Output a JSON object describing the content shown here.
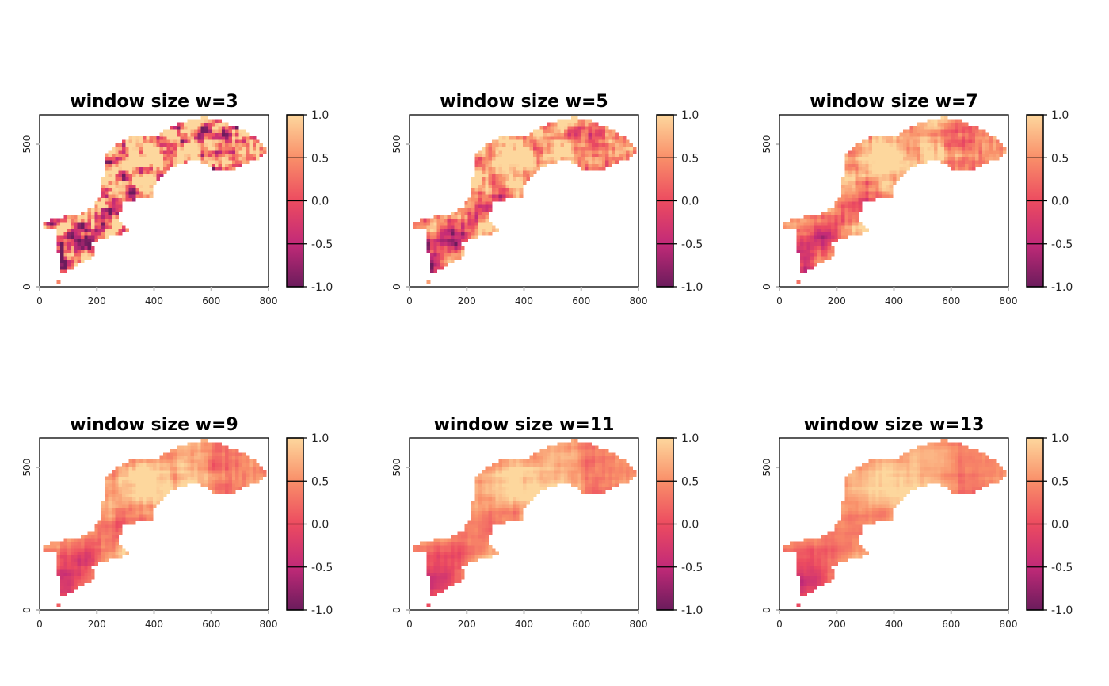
{
  "chart_data": {
    "type": "heatmap",
    "layout": "2x3 grid of raster maps",
    "panels": [
      {
        "title": "window size w=3",
        "w": 3
      },
      {
        "title": "window size w=5",
        "w": 5
      },
      {
        "title": "window size w=7",
        "w": 7
      },
      {
        "title": "window size w=9",
        "w": 9
      },
      {
        "title": "window size w=11",
        "w": 11
      },
      {
        "title": "window size w=13",
        "w": 13
      }
    ],
    "xlim": [
      0,
      800
    ],
    "ylim": [
      0,
      603
    ],
    "x_ticks": [
      "0",
      "200",
      "400",
      "600",
      "800"
    ],
    "x_tick_values": [
      0,
      200,
      400,
      600,
      800
    ],
    "y_ticks": [
      "0",
      "500"
    ],
    "y_tick_values": [
      0,
      500
    ],
    "colorbar": {
      "range": [
        -1,
        1
      ],
      "ticks": [
        "1.0",
        "0.5",
        "0.0",
        "-0.5",
        "-1.0"
      ],
      "tick_values": [
        1,
        0.5,
        0,
        -0.5,
        -1
      ],
      "colors": [
        "#6b1c5c",
        "#c22a78",
        "#ec4b60",
        "#f98f69",
        "#fdd79d"
      ]
    },
    "cell_size": 12,
    "outline": [
      [
        64,
        6
      ],
      [
        75,
        42
      ],
      [
        138,
        80
      ],
      [
        203,
        117
      ],
      [
        175,
        153
      ],
      [
        230,
        172
      ],
      [
        313,
        192
      ],
      [
        296,
        219
      ],
      [
        268,
        236
      ],
      [
        296,
        302
      ],
      [
        392,
        311
      ],
      [
        397,
        358
      ],
      [
        424,
        386
      ],
      [
        463,
        422
      ],
      [
        507,
        431
      ],
      [
        545,
        450
      ],
      [
        601,
        414
      ],
      [
        665,
        403
      ],
      [
        712,
        431
      ],
      [
        740,
        439
      ],
      [
        776,
        456
      ],
      [
        798,
        486
      ],
      [
        776,
        506
      ],
      [
        720,
        547
      ],
      [
        637,
        581
      ],
      [
        582,
        597
      ],
      [
        526,
        589
      ],
      [
        463,
        561
      ],
      [
        415,
        533
      ],
      [
        324,
        533
      ],
      [
        268,
        497
      ],
      [
        227,
        469
      ],
      [
        222,
        386
      ],
      [
        213,
        319
      ],
      [
        185,
        275
      ],
      [
        138,
        256
      ],
      [
        42,
        236
      ],
      [
        6,
        219
      ],
      [
        8,
        200
      ],
      [
        61,
        200
      ],
      [
        61,
        136
      ],
      [
        75,
        89
      ]
    ]
  }
}
